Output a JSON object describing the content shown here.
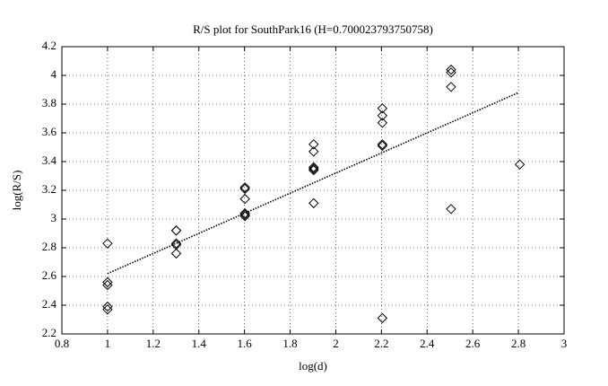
{
  "chart_data": {
    "type": "scatter",
    "title": "R/S plot for SouthPark16 (H=0.700023793750758)",
    "x_label": "log(d)",
    "y_label": "log(R/S)",
    "xlim": [
      0.8,
      3
    ],
    "ylim": [
      2.2,
      4.2
    ],
    "xticks": [
      0.8,
      1,
      1.2,
      1.4,
      1.6,
      1.8,
      2,
      2.2,
      2.4,
      2.6,
      2.8,
      3
    ],
    "yticks": [
      2.2,
      2.4,
      2.6,
      2.8,
      3,
      3.2,
      3.4,
      3.6,
      3.8,
      4,
      4.2
    ],
    "grid": true,
    "series": [
      {
        "color": "#000000",
        "x": [
          1,
          1,
          1,
          1,
          1,
          1.301,
          1.301,
          1.301,
          1.301,
          1.301,
          1.602,
          1.602,
          1.602,
          1.602,
          1.602,
          1.602,
          1.903,
          1.903,
          1.903,
          1.903,
          1.903,
          1.903,
          2.204,
          2.204,
          2.204,
          2.204,
          2.204,
          2.204,
          2.505,
          2.505,
          2.505,
          2.505,
          2.806
        ],
        "values": [
          2.83,
          2.56,
          2.54,
          2.39,
          2.37,
          2.92,
          2.92,
          2.83,
          2.82,
          2.76,
          3.22,
          3.21,
          3.14,
          3.04,
          3.03,
          3.02,
          3.52,
          3.47,
          3.36,
          3.35,
          3.34,
          3.11,
          3.77,
          3.72,
          3.67,
          3.52,
          3.51,
          2.31,
          4.04,
          4.02,
          3.92,
          3.07,
          3.38
        ]
      }
    ],
    "fit": {
      "color": "#000000",
      "x": [
        1,
        2.8
      ],
      "values": [
        2.62,
        3.88
      ]
    }
  }
}
